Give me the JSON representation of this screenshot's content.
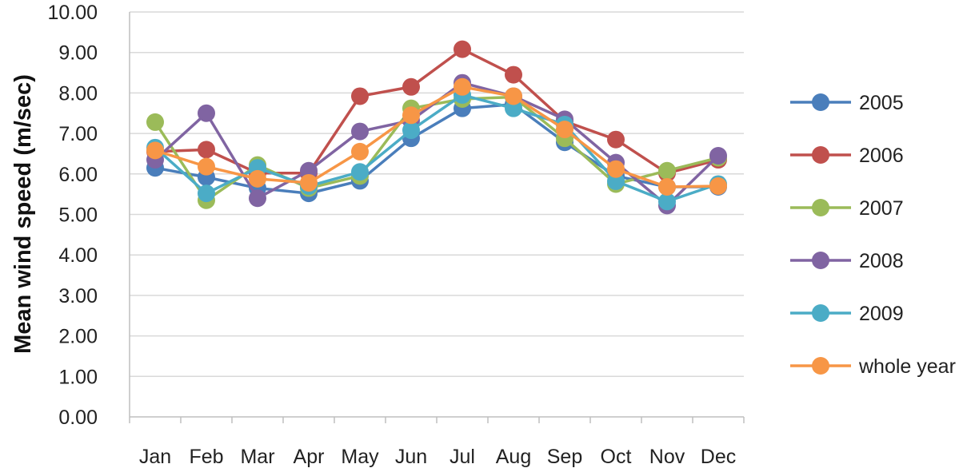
{
  "chart_data": {
    "type": "line",
    "title": "",
    "xlabel": "",
    "ylabel": "Mean wind speed (m/sec)",
    "categories": [
      "Jan",
      "Feb",
      "Mar",
      "Apr",
      "May",
      "Jun",
      "Jul",
      "Aug",
      "Sep",
      "Oct",
      "Nov",
      "Dec"
    ],
    "ylim": [
      0,
      10
    ],
    "yticks": [
      "0.00",
      "1.00",
      "2.00",
      "3.00",
      "4.00",
      "5.00",
      "6.00",
      "7.00",
      "8.00",
      "9.00",
      "10.00"
    ],
    "grid": true,
    "legend_position": "right",
    "series": [
      {
        "name": "2005",
        "color": "#4a7ebb",
        "values": [
          6.15,
          5.92,
          5.65,
          5.52,
          5.83,
          6.88,
          7.62,
          7.72,
          6.78,
          5.95,
          5.68,
          5.68
        ]
      },
      {
        "name": "2006",
        "color": "#c0504d",
        "values": [
          6.55,
          6.6,
          6.02,
          6.02,
          7.92,
          8.15,
          9.08,
          8.45,
          7.3,
          6.85,
          6.02,
          6.35
        ]
      },
      {
        "name": "2007",
        "color": "#9bbb59",
        "values": [
          7.28,
          5.35,
          6.22,
          5.65,
          5.95,
          7.62,
          7.85,
          7.9,
          6.88,
          5.75,
          6.08,
          6.4
        ]
      },
      {
        "name": "2008",
        "color": "#8064a2",
        "values": [
          6.35,
          7.5,
          5.4,
          6.08,
          7.05,
          7.32,
          8.25,
          7.92,
          7.35,
          6.28,
          5.22,
          6.45
        ]
      },
      {
        "name": "2009",
        "color": "#4bacc6",
        "values": [
          6.65,
          5.52,
          6.15,
          5.7,
          6.05,
          7.08,
          7.95,
          7.62,
          7.22,
          5.82,
          5.32,
          5.75
        ]
      },
      {
        "name": "whole year",
        "color": "#f79646",
        "values": [
          6.58,
          6.18,
          5.88,
          5.78,
          6.55,
          7.45,
          8.15,
          7.92,
          7.1,
          6.12,
          5.68,
          5.7
        ]
      }
    ]
  }
}
